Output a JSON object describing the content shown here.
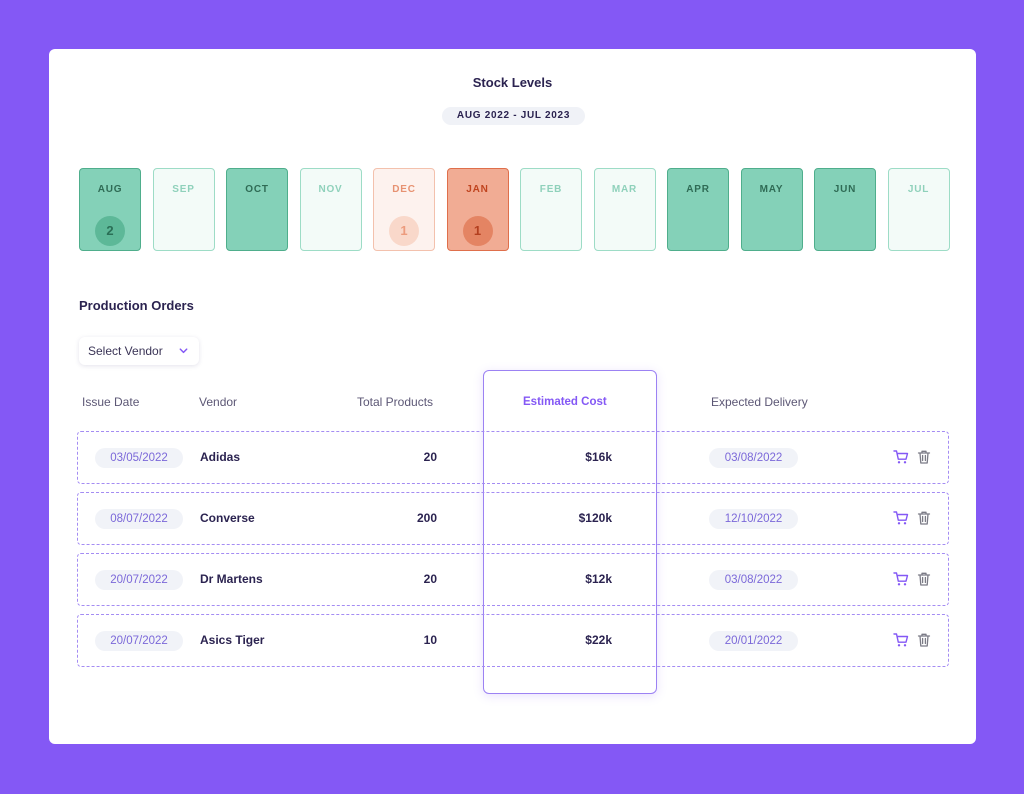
{
  "stock": {
    "title": "Stock Levels",
    "range": "AUG 2022 - JUL 2023",
    "months": [
      {
        "label": "AUG",
        "status": "full",
        "count": "2"
      },
      {
        "label": "SEP",
        "status": "empty",
        "count": ""
      },
      {
        "label": "OCT",
        "status": "full",
        "count": ""
      },
      {
        "label": "NOV",
        "status": "empty",
        "count": ""
      },
      {
        "label": "DEC",
        "status": "low",
        "count": "1"
      },
      {
        "label": "JAN",
        "status": "critical",
        "count": "1"
      },
      {
        "label": "FEB",
        "status": "empty",
        "count": ""
      },
      {
        "label": "MAR",
        "status": "empty",
        "count": ""
      },
      {
        "label": "APR",
        "status": "full",
        "count": ""
      },
      {
        "label": "MAY",
        "status": "full",
        "count": ""
      },
      {
        "label": "JUN",
        "status": "full",
        "count": ""
      },
      {
        "label": "JUL",
        "status": "empty",
        "count": ""
      }
    ]
  },
  "orders": {
    "title": "Production Orders",
    "vendor_select": {
      "label": "Select Vendor",
      "icon": "chevron-down-icon"
    },
    "columns": [
      "Issue Date",
      "Vendor",
      "Total Products",
      "Estimated Cost",
      "Expected Delivery"
    ],
    "active_column": "Estimated Cost",
    "rows": [
      {
        "issue_date": "03/05/2022",
        "vendor": "Adidas",
        "total_products": "20",
        "estimated_cost": "$16k",
        "expected_delivery": "03/08/2022"
      },
      {
        "issue_date": "08/07/2022",
        "vendor": "Converse",
        "total_products": "200",
        "estimated_cost": "$120k",
        "expected_delivery": "12/10/2022"
      },
      {
        "issue_date": "20/07/2022",
        "vendor": "Dr Martens",
        "total_products": "20",
        "estimated_cost": "$12k",
        "expected_delivery": "03/08/2022"
      },
      {
        "issue_date": "20/07/2022",
        "vendor": "Asics Tiger",
        "total_products": "10",
        "estimated_cost": "$22k",
        "expected_delivery": "20/01/2022"
      }
    ],
    "row_actions": [
      "cart-icon",
      "trash-icon"
    ]
  },
  "colors": {
    "background": "#8458f5",
    "accent": "#8458f5",
    "stock_full": "#84d1b8",
    "stock_low": "#fdf2ee",
    "stock_critical": "#f1ac94"
  }
}
